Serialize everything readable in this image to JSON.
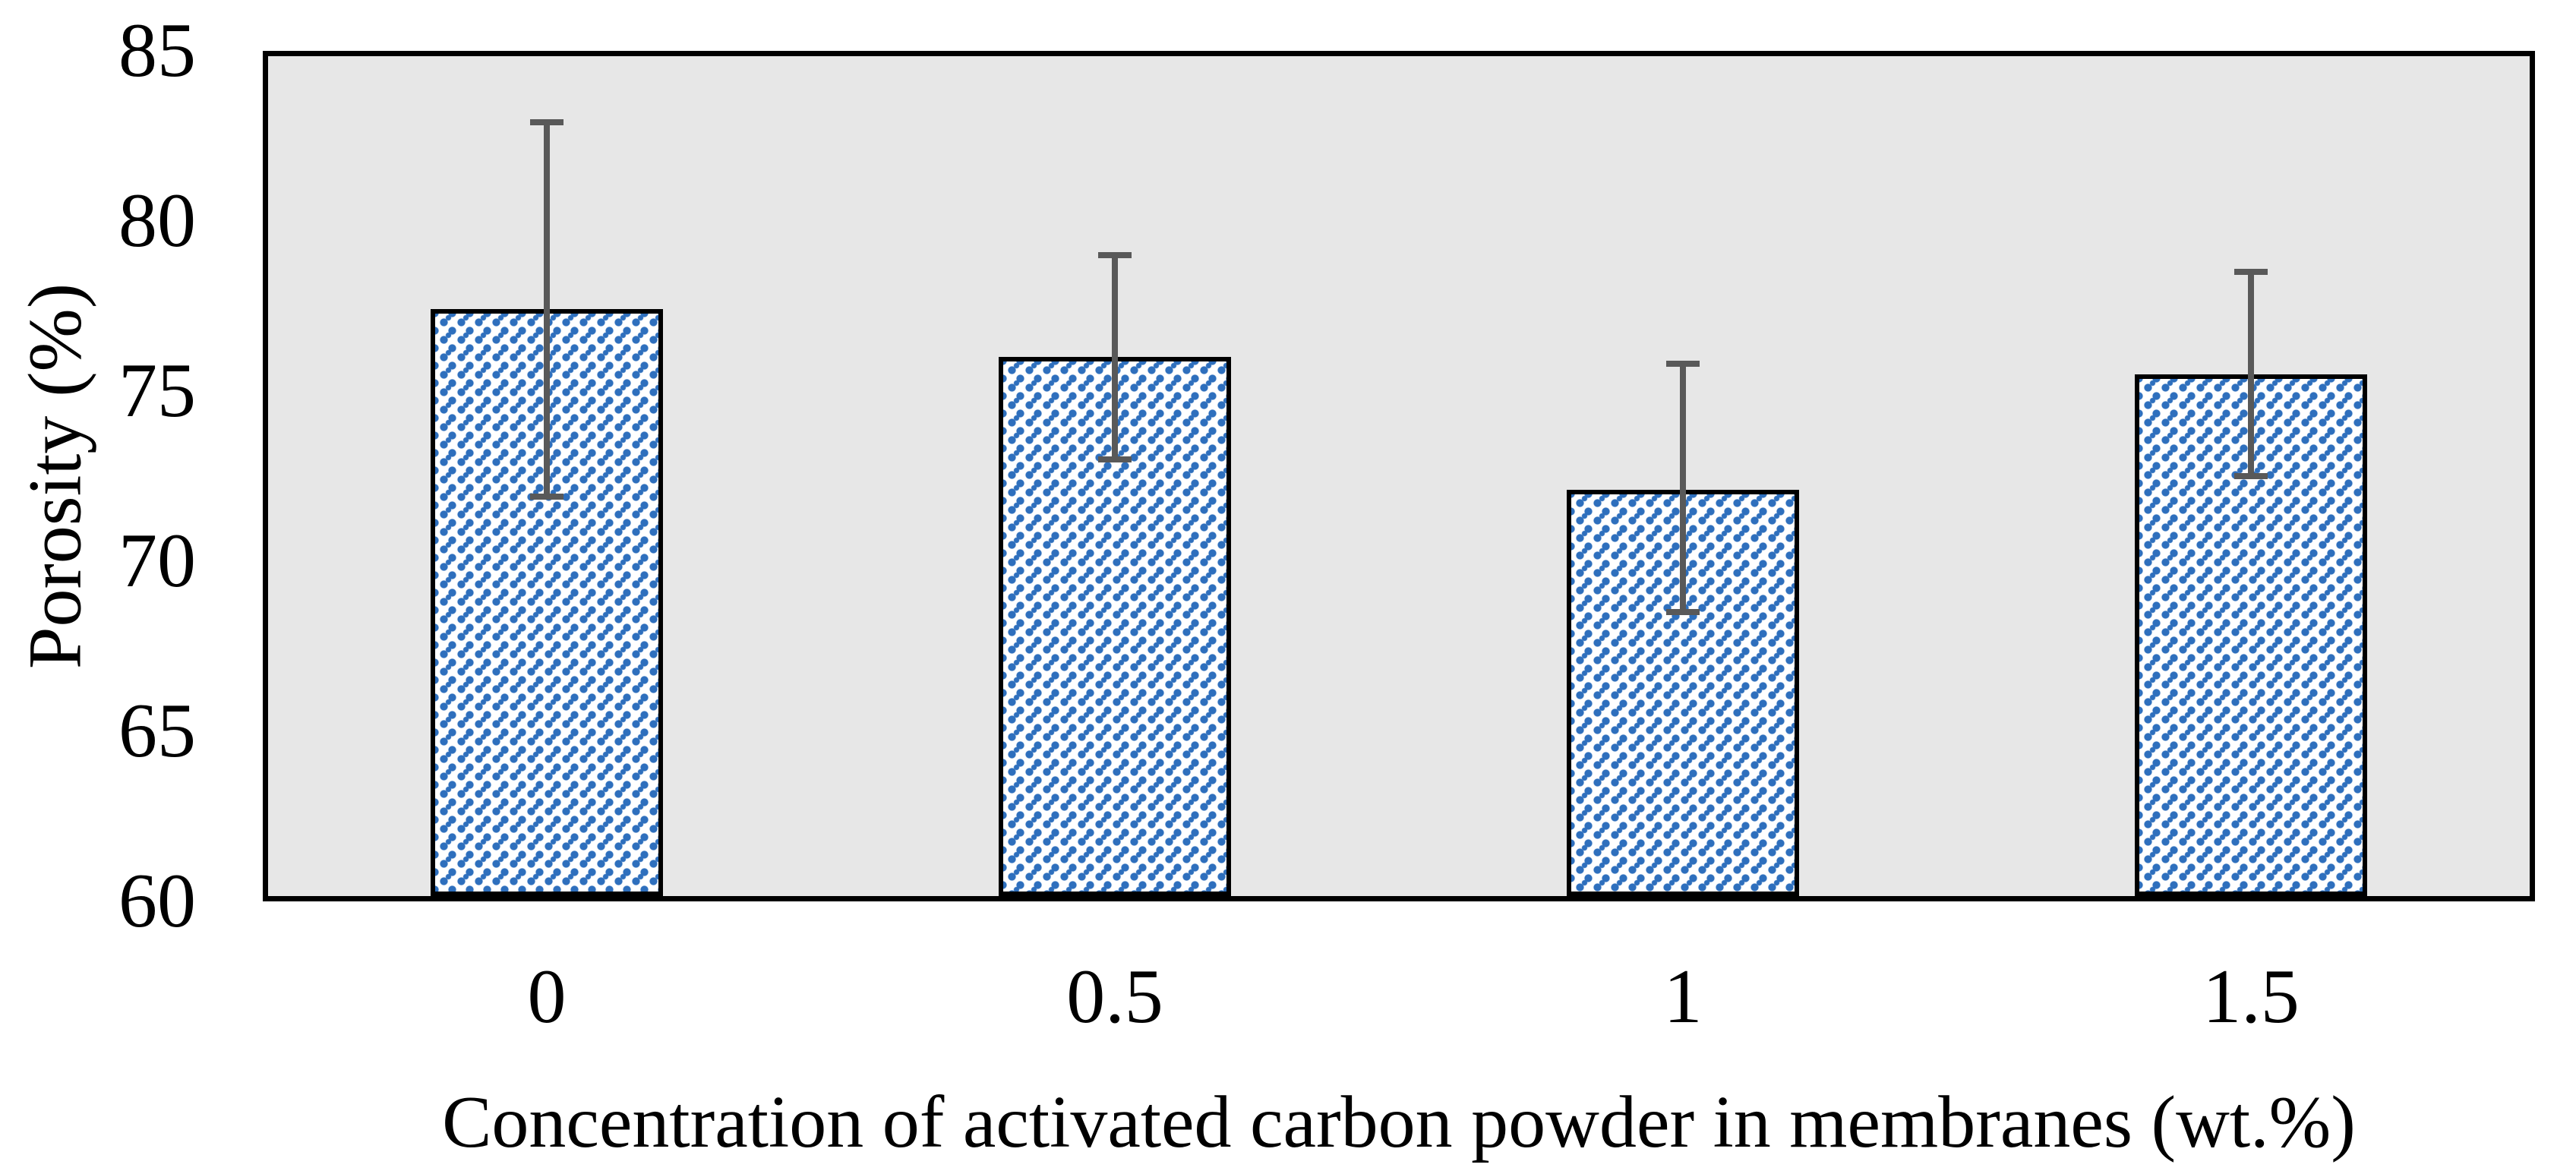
{
  "chart_data": {
    "type": "bar",
    "title": "",
    "xlabel": "Concentration of activated carbon powder in membranes (wt.%)",
    "ylabel": "Porosity (%)",
    "categories": [
      "0",
      "0.5",
      "1",
      "1.5"
    ],
    "values": [
      77.4,
      76.0,
      72.1,
      75.5
    ],
    "error_plus": [
      5.5,
      3.0,
      3.7,
      3.0
    ],
    "error_minus": [
      5.5,
      3.0,
      3.6,
      3.0
    ],
    "ylim": [
      60,
      85
    ],
    "yticks": [
      85,
      80,
      75,
      70,
      65,
      60
    ],
    "grid": false,
    "legend_position": "none",
    "bar_fill_style": "blue dotted pattern on white",
    "colors": {
      "plot_background": "#e7e7e7",
      "frame_border": "#000000",
      "bar_fill_base": "#ffffff",
      "bar_dot": "#2e6fbd",
      "bar_border": "#000000",
      "error_bar": "#595959",
      "text": "#000000",
      "page_background": "#ffffff"
    }
  }
}
